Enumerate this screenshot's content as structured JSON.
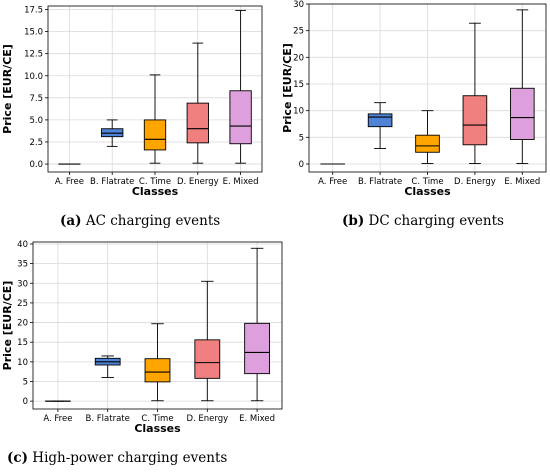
{
  "colors": {
    "A. Free": "#808080",
    "B. Flatrate": "#4f83d6",
    "C. Time": "#ffa500",
    "D. Energy": "#f08080",
    "E. Mixed": "#dda0dd"
  },
  "captions": [
    {
      "label": "(a)",
      "text": " AC charging events"
    },
    {
      "label": "(b)",
      "text": " DC charging events"
    },
    {
      "label": "(c)",
      "text": " High-power charging events"
    }
  ],
  "chart_data": [
    {
      "type": "box",
      "xlabel": "Classes",
      "ylabel": "Price [EUR/CE]",
      "ylim": [
        -0.9,
        17.9
      ],
      "yticks": [
        0.0,
        2.5,
        5.0,
        7.5,
        10.0,
        12.5,
        15.0,
        17.5
      ],
      "ytick_labels": [
        "0.0",
        "2.5",
        "5.0",
        "7.5",
        "10.0",
        "12.5",
        "15.0",
        "17.5"
      ],
      "grid": true,
      "categories": [
        "A. Free",
        "B. Flatrate",
        "C. Time",
        "D. Energy",
        "E. Mixed"
      ],
      "boxes": [
        {
          "min": 0,
          "q1": 0,
          "median": 0,
          "q3": 0,
          "max": 0
        },
        {
          "min": 2.0,
          "q1": 3.1,
          "median": 3.5,
          "q3": 4.0,
          "max": 5.0
        },
        {
          "min": 0.1,
          "q1": 1.6,
          "median": 2.8,
          "q3": 5.0,
          "max": 10.1
        },
        {
          "min": 0.1,
          "q1": 2.4,
          "median": 4.0,
          "q3": 6.9,
          "max": 13.7
        },
        {
          "min": 0.1,
          "q1": 2.3,
          "median": 4.3,
          "q3": 8.3,
          "max": 17.4
        }
      ]
    },
    {
      "type": "box",
      "xlabel": "Classes",
      "ylabel": "Price [EUR/CE]",
      "ylim": [
        -1.5,
        30.0
      ],
      "yticks": [
        0,
        5,
        10,
        15,
        20,
        25,
        30
      ],
      "ytick_labels": [
        "0",
        "5",
        "10",
        "15",
        "20",
        "25",
        "30"
      ],
      "grid": true,
      "categories": [
        "A. Free",
        "B. Flatrate",
        "C. Time",
        "D. Energy",
        "E. Mixed"
      ],
      "boxes": [
        {
          "min": 0,
          "q1": 0,
          "median": 0,
          "q3": 0,
          "max": 0
        },
        {
          "min": 2.9,
          "q1": 7.0,
          "median": 8.8,
          "q3": 9.4,
          "max": 11.5
        },
        {
          "min": 0.1,
          "q1": 2.2,
          "median": 3.4,
          "q3": 5.4,
          "max": 10.0
        },
        {
          "min": 0.1,
          "q1": 3.6,
          "median": 7.3,
          "q3": 12.8,
          "max": 26.4
        },
        {
          "min": 0.1,
          "q1": 4.6,
          "median": 8.7,
          "q3": 14.2,
          "max": 28.9
        }
      ]
    },
    {
      "type": "box",
      "xlabel": "Classes",
      "ylabel": "Price [EUR/CE]",
      "ylim": [
        -2.0,
        40.5
      ],
      "yticks": [
        0,
        5,
        10,
        15,
        20,
        25,
        30,
        35,
        40
      ],
      "ytick_labels": [
        "0",
        "5",
        "10",
        "15",
        "20",
        "25",
        "30",
        "35",
        "40"
      ],
      "grid": true,
      "categories": [
        "A. Free",
        "B. Flatrate",
        "C. Time",
        "D. Energy",
        "E. Mixed"
      ],
      "boxes": [
        {
          "min": 0,
          "q1": 0,
          "median": 0,
          "q3": 0,
          "max": 0
        },
        {
          "min": 6.0,
          "q1": 9.2,
          "median": 10.0,
          "q3": 10.9,
          "max": 11.5
        },
        {
          "min": 0.1,
          "q1": 4.9,
          "median": 7.4,
          "q3": 10.8,
          "max": 19.7
        },
        {
          "min": 0.1,
          "q1": 5.8,
          "median": 9.8,
          "q3": 15.6,
          "max": 30.5
        },
        {
          "min": 0.1,
          "q1": 7.0,
          "median": 12.4,
          "q3": 19.8,
          "max": 38.9
        }
      ]
    }
  ]
}
